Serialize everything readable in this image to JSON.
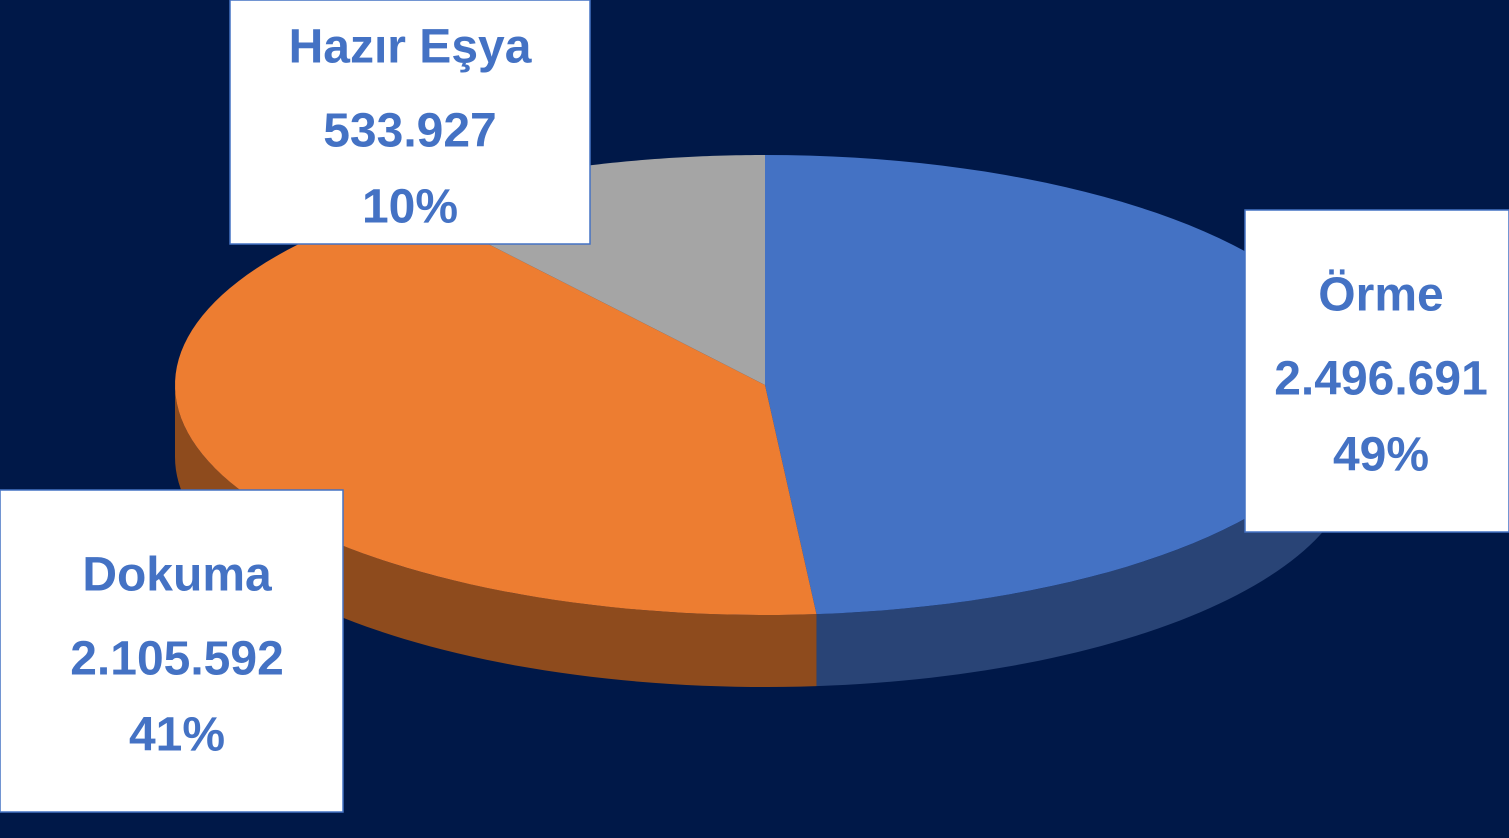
{
  "chart_data": {
    "type": "pie",
    "style": "3d",
    "categories": [
      "Örme",
      "Dokuma",
      "Hazır Eşya"
    ],
    "values": [
      2496691,
      2105592,
      533927
    ],
    "value_labels": [
      "2.496.691",
      "2.105.592",
      "533.927"
    ],
    "percent_labels": [
      "49%",
      "41%",
      "10%"
    ],
    "colors": [
      "#4472c4",
      "#ed7d31",
      "#a5a5a5"
    ]
  }
}
